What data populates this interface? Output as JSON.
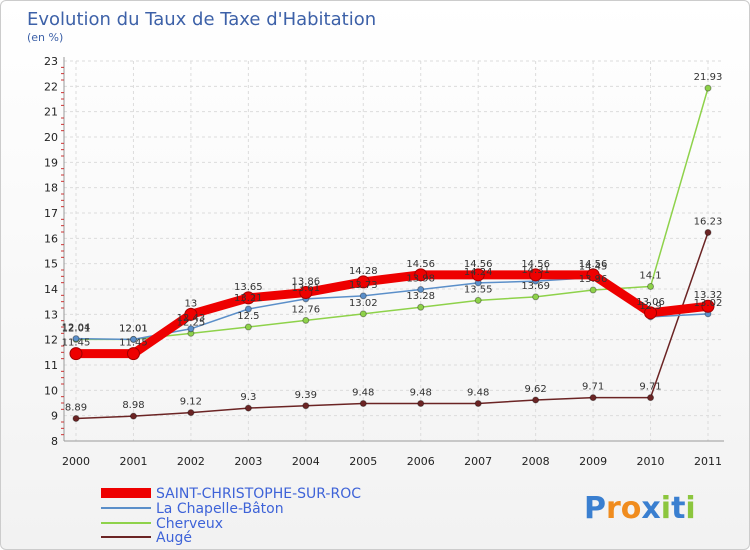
{
  "chart_data": {
    "type": "line",
    "title": "Evolution du Taux de Taxe d'Habitation",
    "subtitle": "(en %)",
    "xlabel": "",
    "ylabel": "",
    "categories": [
      "2000",
      "2001",
      "2002",
      "2003",
      "2004",
      "2005",
      "2006",
      "2007",
      "2008",
      "2009",
      "2010",
      "2011"
    ],
    "ylim": [
      8,
      23
    ],
    "yticks": [
      "8",
      "9",
      "10",
      "11",
      "12",
      "13",
      "14",
      "15",
      "16",
      "17",
      "18",
      "19",
      "20",
      "21",
      "22",
      "23"
    ],
    "grid": true,
    "legend_position": "bottom-left",
    "series": [
      {
        "name": "SAINT-CHRISTOPHE-SUR-ROC",
        "color": "#ee0000",
        "values": [
          11.45,
          11.45,
          13,
          13.65,
          13.86,
          14.28,
          14.56,
          14.56,
          14.56,
          14.56,
          13.06,
          13.32
        ],
        "labels": [
          "11.45",
          "11.45",
          "13",
          "13.65",
          "13.86",
          "14.28",
          "14.56",
          "14.56",
          "14.56",
          "14.56",
          "13.06",
          "13.32"
        ]
      },
      {
        "name": "La Chapelle-Bâton",
        "color": "#5b8fc9",
        "values": [
          12.04,
          12.01,
          12.43,
          13.21,
          13.61,
          13.73,
          13.98,
          14.24,
          14.31,
          14.45,
          12.9,
          13.02
        ],
        "labels": [
          "12.04",
          "12.01",
          "12.43",
          "13.21",
          "13.61",
          "13.73",
          "13.98",
          "14.24",
          "14.31",
          "14.45",
          "12.9",
          "13.02"
        ]
      },
      {
        "name": "Cherveux",
        "color": "#8ed24a",
        "values": [
          12.01,
          12.01,
          12.25,
          12.5,
          12.76,
          13.02,
          13.28,
          13.55,
          13.69,
          13.96,
          14.1,
          21.93
        ],
        "labels": [
          "12.01",
          "12.01",
          "12.25",
          "12.5",
          "12.76",
          "13.02",
          "13.28",
          "13.55",
          "13.69",
          "13.96",
          "14.1",
          "21.93"
        ]
      },
      {
        "name": "Augé",
        "color": "#6b2424",
        "values": [
          8.89,
          8.98,
          9.12,
          9.3,
          9.39,
          9.48,
          9.48,
          9.48,
          9.62,
          9.71,
          9.71,
          16.23
        ],
        "labels": [
          "8.89",
          "8.98",
          "9.12",
          "9.3",
          "9.39",
          "9.48",
          "9.48",
          "9.48",
          "9.62",
          "9.71",
          "9.71",
          "16.23"
        ]
      }
    ]
  },
  "legend": {
    "items": [
      "SAINT-CHRISTOPHE-SUR-ROC",
      "La Chapelle-Bâton",
      "Cherveux",
      "Augé"
    ]
  },
  "brand": {
    "letters": [
      "P",
      "r",
      "o",
      "x",
      "i",
      "t",
      "i"
    ],
    "colors": [
      "#3a7fd0",
      "#f08c1e",
      "#f08c1e",
      "#3a7fd0",
      "#8cc63e",
      "#3a7fd0",
      "#8cc63e"
    ]
  }
}
